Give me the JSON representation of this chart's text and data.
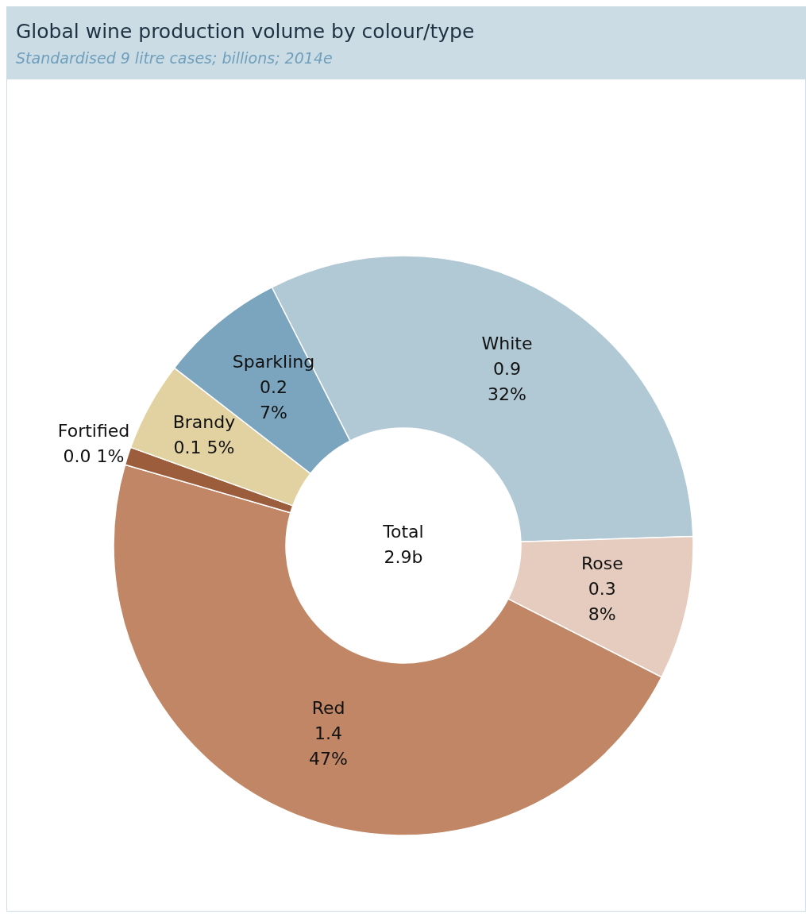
{
  "chart_data": {
    "type": "donut",
    "title": "Global wine production volume by colour/type",
    "subtitle": "Standardised 9 litre cases; billions; 2014e",
    "categories": [
      "White",
      "Rose",
      "Red",
      "Fortified",
      "Brandy",
      "Sparkling"
    ],
    "values": [
      32,
      8,
      47,
      1,
      5,
      7
    ],
    "colors": [
      "#b1c8d5",
      "#e6ccbe",
      "#c08665",
      "#9c5d3d",
      "#e2d2a2",
      "#7ba5be"
    ],
    "value_labels": [
      "0.9\n32%",
      "0.3\n8%",
      "1.4\n47%",
      "0.0 1%",
      "0.1 5%",
      "0.2\n7%"
    ],
    "annotations": [
      "Total\n2.9b"
    ]
  }
}
